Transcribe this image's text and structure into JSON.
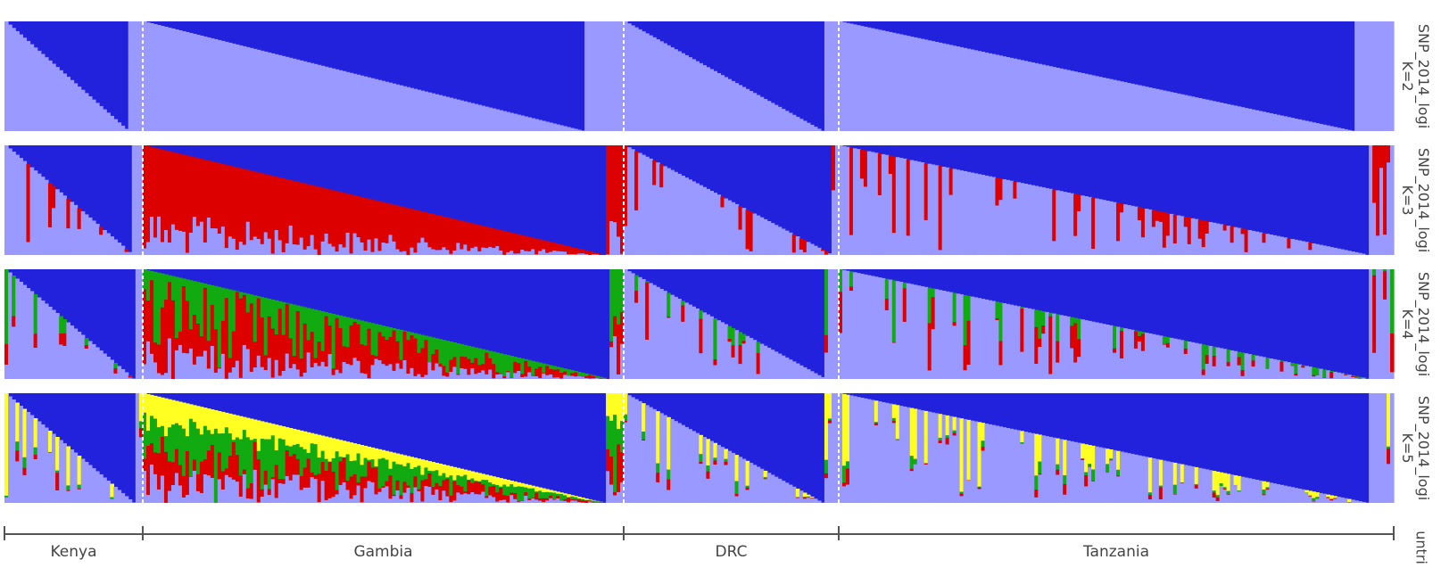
{
  "chart_data": {
    "type": "structure-barplot",
    "panels": [
      {
        "label_line1": "SNP_2014_logi",
        "label_line2": "K=2",
        "k": 2
      },
      {
        "label_line1": "SNP_2014_logi",
        "label_line2": "K=3",
        "k": 3
      },
      {
        "label_line1": "SNP_2014_logi",
        "label_line2": "K=4",
        "k": 4
      },
      {
        "label_line1": "SNP_2014_logi",
        "label_line2": "K=5",
        "k": 5
      }
    ],
    "populations": [
      {
        "name": "Kenya",
        "samples": 38
      },
      {
        "name": "Gambia",
        "samples": 135
      },
      {
        "name": "DRC",
        "samples": 60
      },
      {
        "name": "Tanzania",
        "samples": 156
      }
    ],
    "cluster_colors": [
      "#2222dd",
      "#9999ff",
      "#dd0000",
      "#11aa11",
      "#ffff22"
    ],
    "axis_label": "untri",
    "sample_order": "sorted by dark-blue cluster membership within each population",
    "ylim": [
      0,
      1
    ],
    "population_separator": "white dashed line"
  },
  "colors": {
    "axis": "#555555",
    "separator": "#ffffff"
  }
}
